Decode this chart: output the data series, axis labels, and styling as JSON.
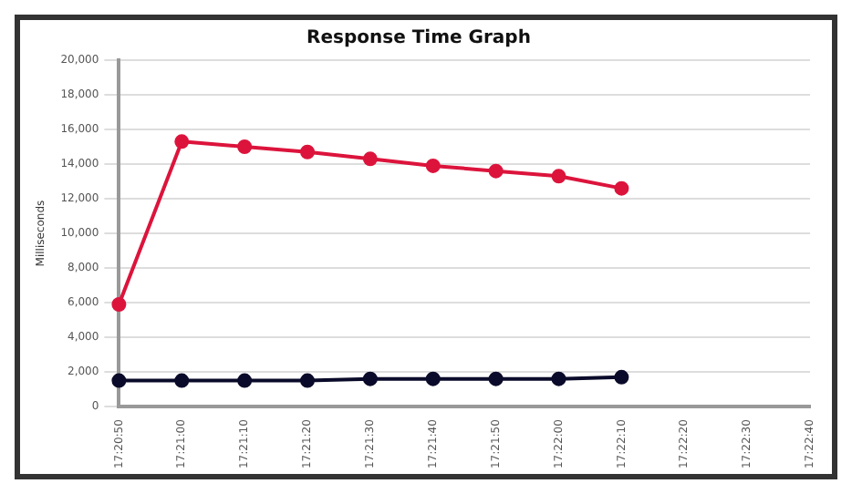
{
  "chart_data": {
    "type": "line",
    "title": "Response Time Graph",
    "ylabel": "Milliseconds",
    "categories": [
      "17:20:50",
      "17:21:00",
      "17:21:10",
      "17:21:20",
      "17:21:30",
      "17:21:40",
      "17:21:50",
      "17:22:00",
      "17:22:10",
      "17:22:20",
      "17:22:30",
      "17:22:40"
    ],
    "series": [
      {
        "color": "#dc143c",
        "values": [
          5900,
          15300,
          15000,
          14700,
          14300,
          13900,
          13600,
          13300,
          12600,
          null,
          null,
          null
        ]
      },
      {
        "color": "#0a0a2a",
        "values": [
          1500,
          1500,
          1500,
          1500,
          1600,
          1600,
          1600,
          1600,
          1700,
          null,
          null,
          null
        ]
      }
    ],
    "ylim": [
      0,
      20000
    ],
    "yticks": [
      {
        "value": 0,
        "label": "0"
      },
      {
        "value": 2000,
        "label": "2,000"
      },
      {
        "value": 4000,
        "label": "4,000"
      },
      {
        "value": 6000,
        "label": "6,000"
      },
      {
        "value": 8000,
        "label": "8,000"
      },
      {
        "value": 10000,
        "label": "10,000"
      },
      {
        "value": 12000,
        "label": "12,000"
      },
      {
        "value": 14000,
        "label": "14,000"
      },
      {
        "value": 16000,
        "label": "16,000"
      },
      {
        "value": 18000,
        "label": "18,000"
      },
      {
        "value": 20000,
        "label": "20,000"
      }
    ],
    "grid": "y",
    "legend": false,
    "marker": "circle",
    "line_style": "solid"
  }
}
